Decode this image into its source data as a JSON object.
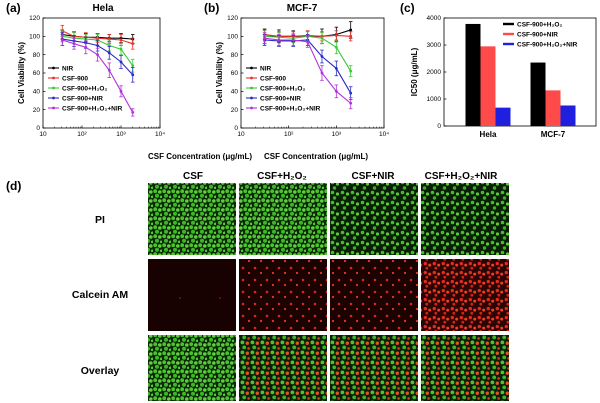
{
  "colors": {
    "black": "#000000",
    "red": "#e8312d",
    "green": "#3dc83a",
    "blue": "#2a2aca",
    "purple": "#b431d8",
    "bar_black": "#000000",
    "bar_red": "#ff4a4a",
    "bar_blue": "#1f1fe0"
  },
  "panels": {
    "a": {
      "label": "(a)",
      "title": "Hela"
    },
    "b": {
      "label": "(b)",
      "title": "MCF-7"
    },
    "c": {
      "label": "(c)"
    },
    "d": {
      "label": "(d)"
    }
  },
  "images": {
    "columns": [
      "CSF",
      "CSF+H₂O₂",
      "CSF+NIR",
      "CSF+H₂O₂+NIR"
    ],
    "rows": [
      "PI",
      "Calcein AM",
      "Overlay"
    ]
  },
  "chart_data": [
    {
      "id": "a",
      "type": "line",
      "title": "Hela",
      "xlabel": "CSF Concentration (μg/mL)",
      "ylabel": "Cell Viability (%)",
      "xscale": "log",
      "xlim": [
        10,
        10000
      ],
      "ylim": [
        0,
        120
      ],
      "xticks": [
        {
          "v": 10,
          "label": "10"
        },
        {
          "v": 100,
          "label": "10²"
        },
        {
          "v": 1000,
          "label": "10³"
        },
        {
          "v": 10000,
          "label": "10⁴"
        }
      ],
      "yticks": [
        0,
        20,
        40,
        60,
        80,
        100,
        120
      ],
      "legend": "left-lower",
      "x": [
        31.25,
        62.5,
        125,
        250,
        500,
        1000,
        2000
      ],
      "series": [
        {
          "name": "NIR",
          "color_key": "black",
          "values": [
            102,
            100,
            99,
            99,
            98,
            98,
            97
          ],
          "err": [
            5,
            5,
            4,
            4,
            4,
            5,
            5
          ]
        },
        {
          "name": "CSF-900",
          "color_key": "red",
          "values": [
            106,
            100,
            99,
            98,
            97,
            96,
            92
          ],
          "err": [
            6,
            5,
            5,
            5,
            5,
            6,
            6
          ]
        },
        {
          "name": "CSF-900+H₂O₂",
          "color_key": "green",
          "values": [
            100,
            98,
            97,
            96,
            90,
            86,
            68
          ],
          "err": [
            6,
            6,
            5,
            6,
            6,
            6,
            7
          ]
        },
        {
          "name": "CSF-900+NIR",
          "color_key": "blue",
          "values": [
            97,
            95,
            93,
            90,
            82,
            72,
            58
          ],
          "err": [
            7,
            6,
            6,
            6,
            7,
            7,
            8
          ]
        },
        {
          "name": "CSF-900+H₂O₂+NIR",
          "color_key": "purple",
          "values": [
            96,
            92,
            88,
            80,
            63,
            40,
            17
          ],
          "err": [
            6,
            6,
            7,
            7,
            8,
            6,
            4
          ]
        }
      ]
    },
    {
      "id": "b",
      "type": "line",
      "title": "MCF-7",
      "xlabel": "CSF Concentration (μg/mL)",
      "ylabel": "Cell Viability (%)",
      "xscale": "log",
      "xlim": [
        10,
        10000
      ],
      "ylim": [
        0,
        120
      ],
      "xticks": [
        {
          "v": 10,
          "label": "10"
        },
        {
          "v": 100,
          "label": "10²"
        },
        {
          "v": 1000,
          "label": "10³"
        },
        {
          "v": 10000,
          "label": "10⁴"
        }
      ],
      "yticks": [
        0,
        20,
        40,
        60,
        80,
        100,
        120
      ],
      "legend": "left-lower",
      "x": [
        31.25,
        62.5,
        125,
        250,
        500,
        1000,
        2000
      ],
      "series": [
        {
          "name": "NIR",
          "color_key": "black",
          "values": [
            100,
            100,
            100,
            100,
            100,
            102,
            107
          ],
          "err": [
            8,
            7,
            6,
            6,
            8,
            8,
            9
          ]
        },
        {
          "name": "CSF-900",
          "color_key": "red",
          "values": [
            102,
            100,
            100,
            101,
            100,
            101,
            100
          ],
          "err": [
            5,
            5,
            5,
            5,
            5,
            5,
            5
          ]
        },
        {
          "name": "CSF-900+H₂O₂",
          "color_key": "green",
          "values": [
            100,
            99,
            98,
            100,
            98,
            88,
            62
          ],
          "err": [
            6,
            5,
            5,
            5,
            6,
            7,
            6
          ]
        },
        {
          "name": "CSF-900+NIR",
          "color_key": "blue",
          "values": [
            96,
            95,
            95,
            96,
            78,
            65,
            38
          ],
          "err": [
            6,
            6,
            6,
            6,
            7,
            8,
            7
          ]
        },
        {
          "name": "CSF-900+H₂O₂+NIR",
          "color_key": "purple",
          "values": [
            98,
            96,
            96,
            94,
            60,
            40,
            27
          ],
          "err": [
            6,
            6,
            6,
            6,
            8,
            7,
            6
          ]
        }
      ]
    },
    {
      "id": "c",
      "type": "bar",
      "title": "",
      "xlabel": "",
      "ylabel": "IC50 (μg/mL)",
      "ylim": [
        0,
        4000
      ],
      "yticks": [
        0,
        1000,
        2000,
        3000,
        4000
      ],
      "categories": [
        "Hela",
        "MCF-7"
      ],
      "legend": "top-right",
      "series": [
        {
          "name": "CSF-900+H₂O₂",
          "color_key": "bar_black",
          "values": [
            3780,
            2350
          ]
        },
        {
          "name": "CSF-900+NIR",
          "color_key": "bar_red",
          "values": [
            2950,
            1320
          ]
        },
        {
          "name": "CSF-900+H₂O₂+NIR",
          "color_key": "bar_blue",
          "values": [
            680,
            760
          ]
        }
      ]
    }
  ]
}
